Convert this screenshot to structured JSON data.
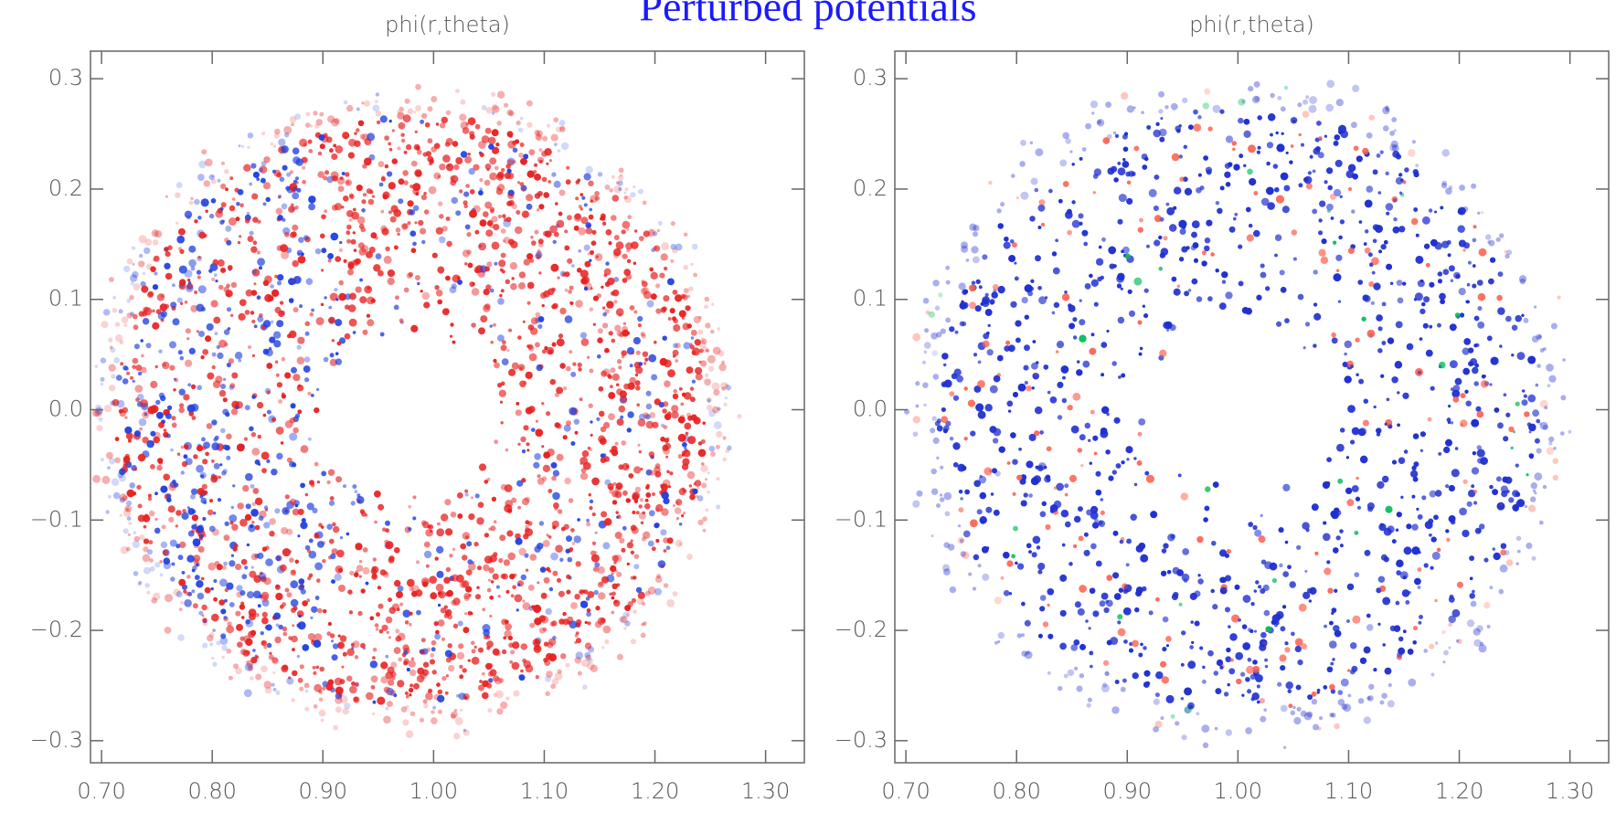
{
  "title": "Perturbed potentials",
  "chart_data": [
    {
      "type": "density",
      "title": "phi(r,theta)",
      "xlim": [
        0.69,
        1.335
      ],
      "ylim": [
        -0.32,
        0.325
      ],
      "xticks": [
        {
          "value": 0.7,
          "label": "0.70"
        },
        {
          "value": 0.8,
          "label": "0.80"
        },
        {
          "value": 0.9,
          "label": "0.90"
        },
        {
          "value": 1.0,
          "label": "1.00"
        },
        {
          "value": 1.1,
          "label": "1.10"
        },
        {
          "value": 1.2,
          "label": "1.20"
        },
        {
          "value": 1.3,
          "label": "1.30"
        }
      ],
      "yticks": [
        {
          "value": -0.3,
          "label": "−0.3"
        },
        {
          "value": -0.2,
          "label": "−0.2"
        },
        {
          "value": -0.1,
          "label": "−0.1"
        },
        {
          "value": 0,
          "label": "0.0"
        },
        0.1,
        0.2,
        0.3
      ],
      "color": "#e02020"
    },
    {
      "type": "density",
      "title": "phi(r,theta)",
      "xlim": [
        0.69,
        1.335
      ],
      "ylim": [
        -0.32,
        0.325
      ],
      "xticks": [
        {
          "value": 0.7,
          "label": "0.70"
        },
        {
          "value": 0.8,
          "label": "0.80"
        },
        {
          "value": 0.9,
          "label": "0.90"
        },
        {
          "value": 1.0,
          "label": "1.00"
        },
        {
          "value": 1.1,
          "label": "1.10"
        },
        {
          "value": 1.2,
          "label": "1.20"
        },
        {
          "value": 1.3,
          "label": "1.30"
        }
      ],
      "yticks": [
        {
          "value": -0.3,
          "label": "−0.3"
        },
        {
          "value": -0.2,
          "label": "−0.2"
        },
        {
          "value": -0.1,
          "label": "−0.1"
        },
        {
          "value": 0,
          "label": "0.0"
        },
        0.1,
        0.2,
        0.3
      ],
      "color": "#2030d0"
    }
  ]
}
